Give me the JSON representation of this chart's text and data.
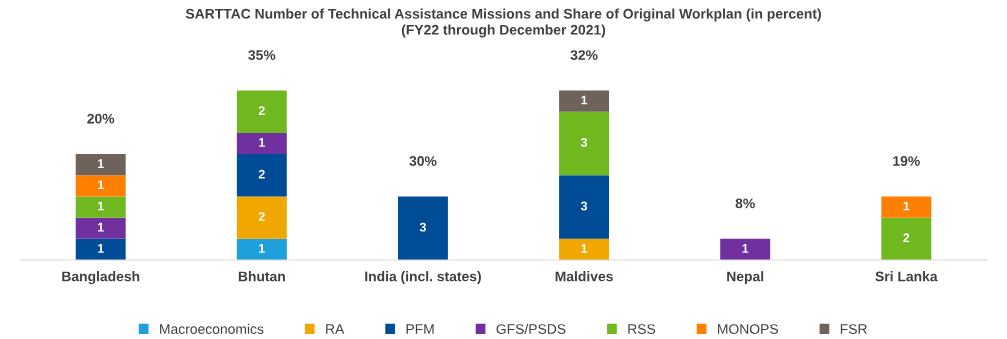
{
  "chart_data": {
    "type": "bar",
    "stacked": true,
    "title": "SARTTAC Number of Technical Assistance Missions and Share of Original Workplan (in percent)\n(FY22 through December 2021)",
    "categories": [
      "Bangladesh",
      "Bhutan",
      "India (incl. states)",
      "Maldives",
      "Nepal",
      "Sri Lanka"
    ],
    "series": [
      {
        "name": "Macroeconomics",
        "color": "#1fa0dc",
        "values": [
          null,
          1,
          null,
          null,
          null,
          null
        ]
      },
      {
        "name": "RA",
        "color": "#f0a800",
        "values": [
          null,
          2,
          null,
          1,
          null,
          null
        ]
      },
      {
        "name": "PFM",
        "color": "#004c97",
        "values": [
          1,
          2,
          3,
          3,
          null,
          null
        ]
      },
      {
        "name": "GFS/PSDS",
        "color": "#7030a0",
        "values": [
          1,
          1,
          null,
          null,
          1,
          null
        ]
      },
      {
        "name": "RSS",
        "color": "#70b820",
        "values": [
          1,
          2,
          null,
          3,
          null,
          2
        ]
      },
      {
        "name": "MONOPS",
        "color": "#ff7f00",
        "values": [
          1,
          null,
          null,
          null,
          null,
          1
        ]
      },
      {
        "name": "FSR",
        "color": "#6e625a",
        "values": [
          1,
          null,
          null,
          1,
          null,
          null
        ]
      }
    ],
    "annotations": [
      {
        "text": "20%",
        "x": "Bangladesh",
        "y": 5
      },
      {
        "text": "35%",
        "x": "Bhutan",
        "y": 8
      },
      {
        "text": "30%",
        "x": "India (incl. states)",
        "y": 3
      },
      {
        "text": "32%",
        "x": "Maldives",
        "y": 8
      },
      {
        "text": "8%",
        "x": "Nepal",
        "y": 1
      },
      {
        "text": "19%",
        "x": "Sri Lanka",
        "y": 3
      }
    ],
    "data_labels": true,
    "tick_labels": "x",
    "grid": false,
    "legend": "bottom"
  }
}
